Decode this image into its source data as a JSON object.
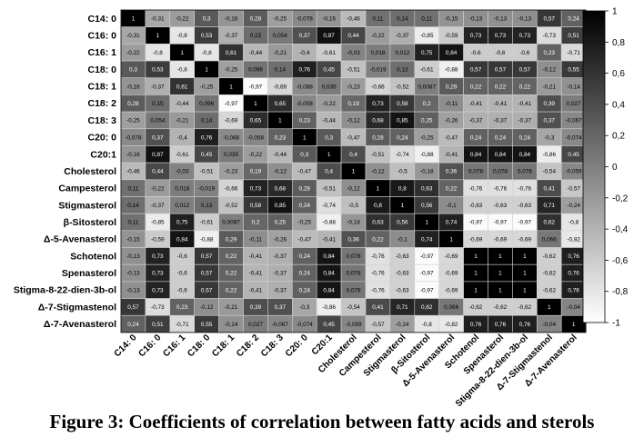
{
  "figure": {
    "caption": "Figure 3: Coefficients of correlation between fatty acids and sterols"
  },
  "chart_data": {
    "type": "heatmap",
    "title": "",
    "xlabel": "",
    "ylabel": "",
    "variables": [
      "C14: 0",
      "C16: 0",
      "C16: 1",
      "C18: 0",
      "C18: 1",
      "C18: 2",
      "C18: 3",
      "C20: 0",
      "C20:1",
      "Cholesterol",
      "Campesterol",
      "Stigmasterol",
      "β-Sitosterol",
      "Δ-5-Avenasterol",
      "Schotenol",
      "Spenasterol",
      "Stigma-8-22-dien-3b-ol",
      "Δ-7-Stigmastenol",
      "Δ-7-Avenasterol"
    ],
    "matrix": [
      [
        "1",
        "-0,31",
        "-0,22",
        "0,3",
        "-0,16",
        "0,28",
        "-0,25",
        "-0,078",
        "-0,16",
        "-0,46",
        "0,11",
        "0,14",
        "0,11",
        "-0,15",
        "-0,13",
        "-0,13",
        "-0,13",
        "0,57",
        "0,24"
      ],
      [
        "-0,31",
        "1",
        "-0,8",
        "0,53",
        "-0,37",
        "0,15",
        "0,054",
        "0,37",
        "0,87",
        "0,44",
        "-0,22",
        "-0,37",
        "-0,85",
        "-0,59",
        "0,73",
        "0,73",
        "0,73",
        "-0,73",
        "0,51"
      ],
      [
        "-0,22",
        "-0,8",
        "1",
        "-0,8",
        "0,61",
        "-0,44",
        "-0,21",
        "-0,4",
        "-0,61",
        "-0,03",
        "0,018",
        "0,012",
        "0,75",
        "0,84",
        "-0,6",
        "-0,6",
        "-0,6",
        "0,23",
        "-0,71"
      ],
      [
        "0,3",
        "0,53",
        "-0,8",
        "1",
        "-0,25",
        "0,096",
        "0,14",
        "0,76",
        "0,45",
        "-0,51",
        "-0,019",
        "0,13",
        "-0,61",
        "-0,88",
        "0,57",
        "0,57",
        "0,57",
        "-0,12",
        "0,55"
      ],
      [
        "-0,16",
        "-0,37",
        "0,61",
        "-0,25",
        "1",
        "-0,97",
        "-0,69",
        "-0,088",
        "0,035",
        "-0,23",
        "-0,66",
        "-0,52",
        "0,0087",
        "0,29",
        "0,22",
        "0,22",
        "0,22",
        "-0,21",
        "-0,14"
      ],
      [
        "0,28",
        "0,15",
        "-0,44",
        "0,096",
        "-0,97",
        "1",
        "0,65",
        "-0,058",
        "-0,22",
        "0,19",
        "0,73",
        "0,58",
        "0,2",
        "-0,11",
        "-0,41",
        "-0,41",
        "-0,41",
        "0,39",
        "0,027"
      ],
      [
        "-0,25",
        "0,054",
        "-0,21",
        "0,14",
        "-0,69",
        "0,65",
        "1",
        "0,23",
        "-0,44",
        "-0,12",
        "0,68",
        "0,85",
        "0,25",
        "-0,26",
        "-0,37",
        "-0,37",
        "-0,37",
        "0,37",
        "-0,067"
      ],
      [
        "-0,078",
        "0,37",
        "-0,4",
        "0,76",
        "-0,088",
        "-0,058",
        "0,23",
        "1",
        "0,3",
        "-0,47",
        "0,28",
        "0,24",
        "-0,25",
        "-0,47",
        "0,24",
        "0,24",
        "0,24",
        "-0,3",
        "-0,074"
      ],
      [
        "-0,16",
        "0,87",
        "-0,61",
        "0,45",
        "0,035",
        "-0,22",
        "-0,44",
        "0,3",
        "1",
        "0,4",
        "-0,51",
        "-0,74",
        "-0,88",
        "-0,41",
        "0,84",
        "0,84",
        "0,84",
        "-0,86",
        "0,45"
      ],
      [
        "-0,46",
        "0,44",
        "-0,03",
        "-0,51",
        "-0,23",
        "0,19",
        "-0,12",
        "-0,47",
        "0,4",
        "1",
        "-0,12",
        "-0,5",
        "-0,18",
        "0,36",
        "0,078",
        "0,078",
        "0,078",
        "-0,54",
        "-0,059"
      ],
      [
        "0,11",
        "-0,22",
        "0,018",
        "-0,019",
        "-0,66",
        "0,73",
        "0,68",
        "0,28",
        "-0,51",
        "-0,12",
        "1",
        "0,8",
        "0,63",
        "0,22",
        "-0,76",
        "-0,76",
        "-0,76",
        "0,41",
        "-0,57"
      ],
      [
        "0,14",
        "-0,37",
        "0,012",
        "0,13",
        "-0,52",
        "0,58",
        "0,85",
        "0,24",
        "-0,74",
        "-0,5",
        "0,8",
        "1",
        "0,56",
        "-0,1",
        "-0,63",
        "-0,63",
        "-0,63",
        "0,71",
        "-0,24"
      ],
      [
        "0,11",
        "-0,85",
        "0,75",
        "-0,61",
        "0,0087",
        "0,2",
        "0,25",
        "-0,25",
        "-0,88",
        "-0,18",
        "0,63",
        "0,56",
        "1",
        "0,74",
        "-0,97",
        "-0,97",
        "-0,97",
        "0,62",
        "-0,8"
      ],
      [
        "-0,15",
        "-0,59",
        "0,84",
        "-0,88",
        "0,29",
        "-0,11",
        "-0,26",
        "-0,47",
        "-0,41",
        "0,36",
        "0,22",
        "-0,1",
        "0,74",
        "1",
        "-0,69",
        "-0,69",
        "-0,69",
        "0,066",
        "-0,82"
      ],
      [
        "-0,13",
        "0,73",
        "-0,6",
        "0,57",
        "0,22",
        "-0,41",
        "-0,37",
        "0,24",
        "0,84",
        "0,078",
        "-0,76",
        "-0,63",
        "-0,97",
        "-0,69",
        "1",
        "1",
        "1",
        "-0,62",
        "0,76"
      ],
      [
        "-0,13",
        "0,73",
        "-0,6",
        "0,57",
        "0,22",
        "-0,41",
        "-0,37",
        "0,24",
        "0,84",
        "0,078",
        "-0,76",
        "-0,63",
        "-0,97",
        "-0,69",
        "1",
        "1",
        "1",
        "-0,62",
        "0,76"
      ],
      [
        "-0,13",
        "0,73",
        "-0,6",
        "0,57",
        "0,22",
        "-0,41",
        "-0,37",
        "0,24",
        "0,84",
        "0,078",
        "-0,76",
        "-0,63",
        "-0,97",
        "-0,69",
        "1",
        "1",
        "1",
        "-0,62",
        "0,76"
      ],
      [
        "0,57",
        "-0,73",
        "0,23",
        "-0,12",
        "-0,21",
        "0,39",
        "0,37",
        "-0,3",
        "-0,86",
        "-0,54",
        "0,41",
        "0,71",
        "0,62",
        "0,066",
        "-0,62",
        "-0,62",
        "-0,62",
        "1",
        "-0,04"
      ],
      [
        "0,24",
        "0,51",
        "-0,71",
        "0,55",
        "-0,14",
        "0,027",
        "-0,067",
        "-0,074",
        "0,45",
        "-0,059",
        "-0,57",
        "-0,24",
        "-0,8",
        "-0,82",
        "0,76",
        "0,76",
        "0,76",
        "-0,04",
        "1"
      ]
    ],
    "color_scale": {
      "min": -1,
      "max": 1,
      "low_color": "#ffffff",
      "high_color": "#000000"
    },
    "colorbar_ticks": [
      "1",
      "0,8",
      "0,6",
      "0,4",
      "0,2",
      "0",
      "-0,2",
      "-0,4",
      "-0,6",
      "-0,8",
      "-1"
    ],
    "grid": true,
    "legend": "right"
  }
}
